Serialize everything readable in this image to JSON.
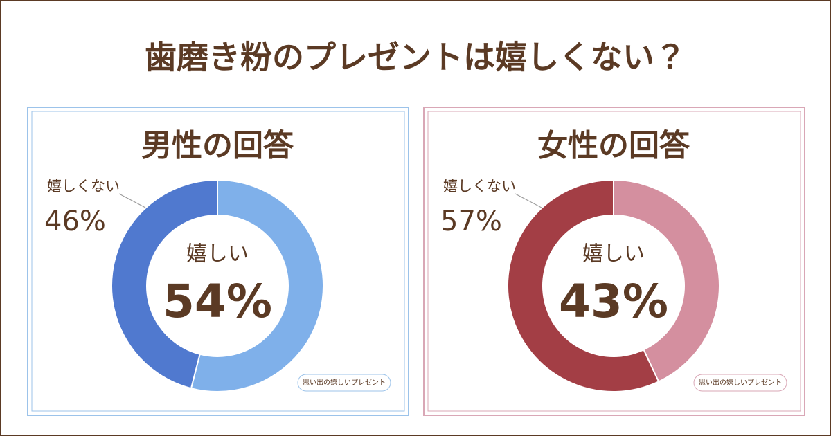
{
  "title": "歯磨き粉のプレゼントは嬉しくない？",
  "chart_data": [
    {
      "type": "donut",
      "title": "男性の回答",
      "categories": [
        "嬉しい",
        "嬉しくない"
      ],
      "values": [
        54,
        46
      ],
      "value_labels": [
        "54%",
        "46%"
      ],
      "colors": [
        "#7fb0ea",
        "#5079cf"
      ],
      "frame_color": "#9cc3ea",
      "source": "思い出の嬉しいプレゼント"
    },
    {
      "type": "donut",
      "title": "女性の回答",
      "categories": [
        "嬉しい",
        "嬉しくない"
      ],
      "values": [
        43,
        57
      ],
      "value_labels": [
        "43%",
        "57%"
      ],
      "colors": [
        "#d48f9f",
        "#a33e45"
      ],
      "frame_color": "#d9a7b6",
      "source": "思い出の嬉しいプレゼント"
    }
  ]
}
